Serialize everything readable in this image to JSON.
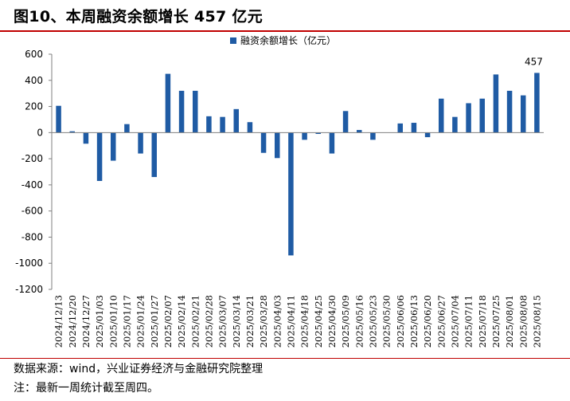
{
  "title": "图10、本周融资余额增长 457 亿元",
  "source": "数据来源：wind，兴业证券经济与金融研究院整理",
  "note": "注：最新一周统计截至周四。",
  "colors": {
    "bar": "#1f5ba4",
    "accent": "#c00000",
    "axis": "#7f7f7f"
  },
  "chart_data": {
    "type": "bar",
    "title": "",
    "legend": [
      "融资余额增长（亿元）"
    ],
    "legend_position": "top-center",
    "xlabel": "",
    "ylabel": "",
    "ylim": [
      -1200,
      600
    ],
    "yticks": [
      600,
      400,
      200,
      0,
      -200,
      -400,
      -600,
      -800,
      -1000,
      -1200
    ],
    "grid": false,
    "categories": [
      "2024/12/13",
      "2024/12/20",
      "2024/12/27",
      "2025/01/03",
      "2025/01/10",
      "2025/01/17",
      "2025/01/24",
      "2025/01/27",
      "2025/02/07",
      "2025/02/14",
      "2025/02/21",
      "2025/02/28",
      "2025/03/07",
      "2025/03/14",
      "2025/03/21",
      "2025/03/28",
      "2025/04/03",
      "2025/04/11",
      "2025/04/18",
      "2025/04/25",
      "2025/04/30",
      "2025/05/09",
      "2025/05/16",
      "2025/05/23",
      "2025/05/30",
      "2025/06/06",
      "2025/06/13",
      "2025/06/20",
      "2025/06/27",
      "2025/07/04",
      "2025/07/11",
      "2025/07/18",
      "2025/07/25",
      "2025/08/01",
      "2025/08/08",
      "2025/08/15"
    ],
    "series": [
      {
        "name": "融资余额增长（亿元）",
        "values": [
          205,
          10,
          -85,
          -370,
          -215,
          65,
          -160,
          -340,
          450,
          320,
          320,
          125,
          120,
          180,
          80,
          -155,
          -195,
          -940,
          -55,
          -10,
          -160,
          165,
          20,
          -55,
          0,
          70,
          75,
          -35,
          260,
          120,
          225,
          260,
          445,
          320,
          285,
          457
        ]
      }
    ],
    "annotations": [
      {
        "category": "2025/08/15",
        "text": "457"
      }
    ]
  }
}
